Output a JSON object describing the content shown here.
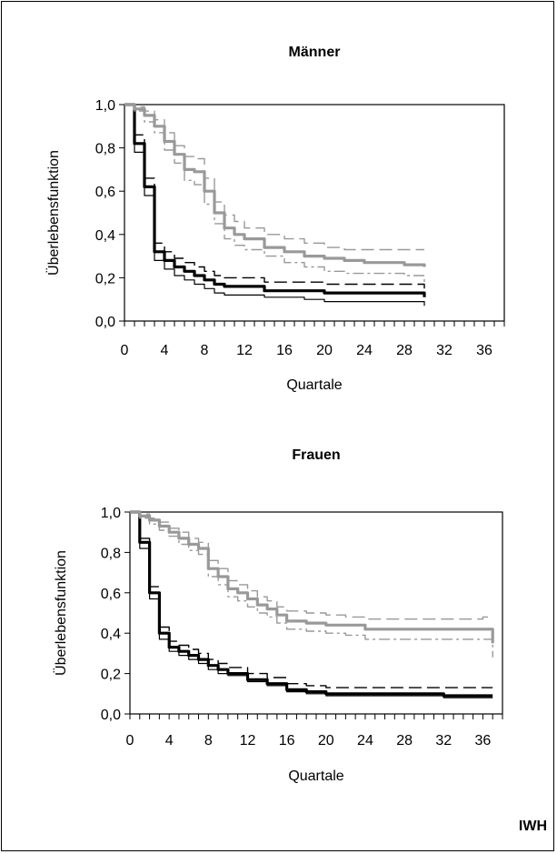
{
  "footer_label": "IWH",
  "chart_data": [
    {
      "type": "line",
      "title": "Männer",
      "xlabel": "Quartale",
      "ylabel": "Überlebensfunktion",
      "xlim": [
        0,
        38
      ],
      "ylim": [
        0,
        1
      ],
      "x_ticks": [
        "0",
        "4",
        "8",
        "12",
        "16",
        "20",
        "24",
        "28",
        "32",
        "36"
      ],
      "y_ticks": [
        "0,0",
        "0,2",
        "0,4",
        "0,6",
        "0,8",
        "1,0"
      ],
      "series": [
        {
          "color": "#000000",
          "style": "solid",
          "width": 3.2,
          "x": [
            0,
            1,
            2,
            3,
            4,
            5,
            6,
            7,
            8,
            9,
            10,
            12,
            14,
            16,
            18,
            20,
            22,
            24,
            26,
            28,
            29,
            30
          ],
          "y": [
            1.0,
            0.82,
            0.62,
            0.32,
            0.28,
            0.25,
            0.23,
            0.21,
            0.19,
            0.17,
            0.16,
            0.16,
            0.14,
            0.14,
            0.14,
            0.13,
            0.13,
            0.13,
            0.13,
            0.13,
            0.13,
            0.11
          ]
        },
        {
          "color": "#000000",
          "style": "solid",
          "width": 1.2,
          "x": [
            0,
            1,
            2,
            3,
            4,
            5,
            6,
            7,
            8,
            9,
            10,
            12,
            14,
            16,
            18,
            20,
            22,
            24,
            26,
            28,
            29,
            30
          ],
          "y": [
            1.0,
            0.78,
            0.58,
            0.28,
            0.24,
            0.21,
            0.19,
            0.17,
            0.15,
            0.13,
            0.12,
            0.12,
            0.11,
            0.11,
            0.1,
            0.09,
            0.09,
            0.09,
            0.09,
            0.09,
            0.09,
            0.07
          ]
        },
        {
          "color": "#000000",
          "style": "dashed",
          "width": 1.4,
          "x": [
            0,
            1,
            2,
            3,
            4,
            5,
            6,
            7,
            8,
            9,
            10,
            12,
            14,
            16,
            18,
            20,
            22,
            24,
            26,
            28,
            29,
            30
          ],
          "y": [
            1.0,
            0.86,
            0.66,
            0.36,
            0.32,
            0.29,
            0.27,
            0.25,
            0.23,
            0.21,
            0.2,
            0.2,
            0.18,
            0.18,
            0.18,
            0.17,
            0.17,
            0.17,
            0.17,
            0.17,
            0.17,
            0.15
          ]
        },
        {
          "color": "#999999",
          "style": "solid",
          "width": 3.2,
          "x": [
            0,
            1,
            2,
            3,
            4,
            5,
            6,
            7,
            8,
            9,
            10,
            11,
            12,
            14,
            16,
            18,
            20,
            22,
            24,
            26,
            28,
            30
          ],
          "y": [
            1.0,
            0.98,
            0.95,
            0.9,
            0.83,
            0.77,
            0.7,
            0.69,
            0.6,
            0.5,
            0.43,
            0.4,
            0.38,
            0.34,
            0.32,
            0.3,
            0.29,
            0.28,
            0.27,
            0.27,
            0.26,
            0.25
          ]
        },
        {
          "color": "#999999",
          "style": "dashed",
          "width": 1.4,
          "x": [
            0,
            1,
            2,
            3,
            4,
            5,
            6,
            7,
            8,
            9,
            10,
            11,
            12,
            14,
            16,
            18,
            20,
            22,
            24,
            26,
            28,
            30
          ],
          "y": [
            1.0,
            0.99,
            0.97,
            0.93,
            0.87,
            0.81,
            0.76,
            0.75,
            0.66,
            0.55,
            0.49,
            0.46,
            0.43,
            0.4,
            0.38,
            0.36,
            0.34,
            0.33,
            0.33,
            0.33,
            0.33,
            0.33
          ]
        },
        {
          "color": "#999999",
          "style": "dashdot",
          "width": 1.4,
          "x": [
            0,
            1,
            2,
            3,
            4,
            5,
            6,
            7,
            8,
            9,
            10,
            11,
            12,
            14,
            16,
            18,
            20,
            22,
            24,
            26,
            28,
            30
          ],
          "y": [
            1.0,
            0.97,
            0.92,
            0.87,
            0.79,
            0.73,
            0.65,
            0.63,
            0.54,
            0.45,
            0.38,
            0.35,
            0.33,
            0.3,
            0.27,
            0.25,
            0.23,
            0.22,
            0.22,
            0.22,
            0.21,
            0.17
          ]
        }
      ]
    },
    {
      "type": "line",
      "title": "Frauen",
      "xlabel": "Quartale",
      "ylabel": "Überlebensfunktion",
      "xlim": [
        0,
        38
      ],
      "ylim": [
        0,
        1
      ],
      "x_ticks": [
        "0",
        "4",
        "8",
        "12",
        "16",
        "20",
        "24",
        "28",
        "32",
        "36"
      ],
      "y_ticks": [
        "0,0",
        "0,2",
        "0,4",
        "0,6",
        "0,8",
        "1,0"
      ],
      "series": [
        {
          "color": "#000000",
          "style": "solid",
          "width": 3.2,
          "x": [
            0,
            1,
            2,
            3,
            4,
            5,
            6,
            7,
            8,
            9,
            10,
            12,
            14,
            16,
            18,
            20,
            22,
            24,
            26,
            28,
            30,
            32,
            34,
            36,
            37
          ],
          "y": [
            1.0,
            0.85,
            0.6,
            0.4,
            0.33,
            0.31,
            0.29,
            0.27,
            0.24,
            0.22,
            0.2,
            0.17,
            0.15,
            0.12,
            0.11,
            0.1,
            0.1,
            0.1,
            0.1,
            0.1,
            0.1,
            0.09,
            0.09,
            0.09,
            0.09
          ]
        },
        {
          "color": "#000000",
          "style": "solid",
          "width": 1.2,
          "x": [
            0,
            1,
            2,
            3,
            4,
            5,
            6,
            7,
            8,
            9,
            10,
            12,
            14,
            16,
            18,
            20,
            22,
            24,
            26,
            28,
            30,
            32,
            34,
            36,
            37
          ],
          "y": [
            1.0,
            0.82,
            0.57,
            0.37,
            0.31,
            0.29,
            0.27,
            0.25,
            0.22,
            0.2,
            0.19,
            0.16,
            0.14,
            0.11,
            0.1,
            0.09,
            0.09,
            0.09,
            0.09,
            0.09,
            0.09,
            0.08,
            0.08,
            0.08,
            0.08
          ]
        },
        {
          "color": "#000000",
          "style": "dashed",
          "width": 1.4,
          "x": [
            0,
            1,
            2,
            3,
            4,
            5,
            6,
            7,
            8,
            9,
            10,
            12,
            14,
            16,
            18,
            20,
            22,
            24,
            26,
            28,
            30,
            32,
            34,
            36,
            37
          ],
          "y": [
            1.0,
            0.87,
            0.63,
            0.43,
            0.36,
            0.34,
            0.32,
            0.3,
            0.27,
            0.25,
            0.23,
            0.2,
            0.18,
            0.15,
            0.14,
            0.13,
            0.13,
            0.13,
            0.13,
            0.13,
            0.13,
            0.13,
            0.13,
            0.13,
            0.13
          ]
        },
        {
          "color": "#999999",
          "style": "solid",
          "width": 3.2,
          "x": [
            0,
            1,
            2,
            3,
            4,
            5,
            6,
            7,
            8,
            9,
            10,
            11,
            12,
            13,
            14,
            15,
            16,
            18,
            20,
            22,
            24,
            26,
            28,
            30,
            32,
            34,
            36,
            37
          ],
          "y": [
            1.0,
            0.98,
            0.96,
            0.93,
            0.9,
            0.87,
            0.84,
            0.82,
            0.72,
            0.68,
            0.62,
            0.6,
            0.57,
            0.54,
            0.52,
            0.49,
            0.46,
            0.45,
            0.44,
            0.44,
            0.42,
            0.42,
            0.42,
            0.42,
            0.42,
            0.42,
            0.42,
            0.35
          ]
        },
        {
          "color": "#999999",
          "style": "dashed",
          "width": 1.4,
          "x": [
            0,
            1,
            2,
            3,
            4,
            5,
            6,
            7,
            8,
            9,
            10,
            11,
            12,
            13,
            14,
            15,
            16,
            18,
            20,
            22,
            24,
            26,
            28,
            30,
            32,
            34,
            36,
            37
          ],
          "y": [
            1.0,
            0.99,
            0.97,
            0.95,
            0.92,
            0.9,
            0.87,
            0.85,
            0.76,
            0.72,
            0.66,
            0.64,
            0.61,
            0.58,
            0.56,
            0.53,
            0.51,
            0.5,
            0.49,
            0.48,
            0.47,
            0.47,
            0.47,
            0.47,
            0.47,
            0.47,
            0.48,
            0.48
          ]
        },
        {
          "color": "#999999",
          "style": "dashdot",
          "width": 1.4,
          "x": [
            0,
            1,
            2,
            3,
            4,
            5,
            6,
            7,
            8,
            9,
            10,
            11,
            12,
            13,
            14,
            15,
            16,
            18,
            20,
            22,
            24,
            26,
            28,
            30,
            32,
            34,
            36,
            37
          ],
          "y": [
            1.0,
            0.97,
            0.94,
            0.91,
            0.88,
            0.84,
            0.81,
            0.79,
            0.68,
            0.64,
            0.58,
            0.56,
            0.53,
            0.5,
            0.48,
            0.45,
            0.42,
            0.41,
            0.4,
            0.39,
            0.37,
            0.37,
            0.37,
            0.37,
            0.37,
            0.37,
            0.37,
            0.28
          ]
        }
      ]
    }
  ]
}
